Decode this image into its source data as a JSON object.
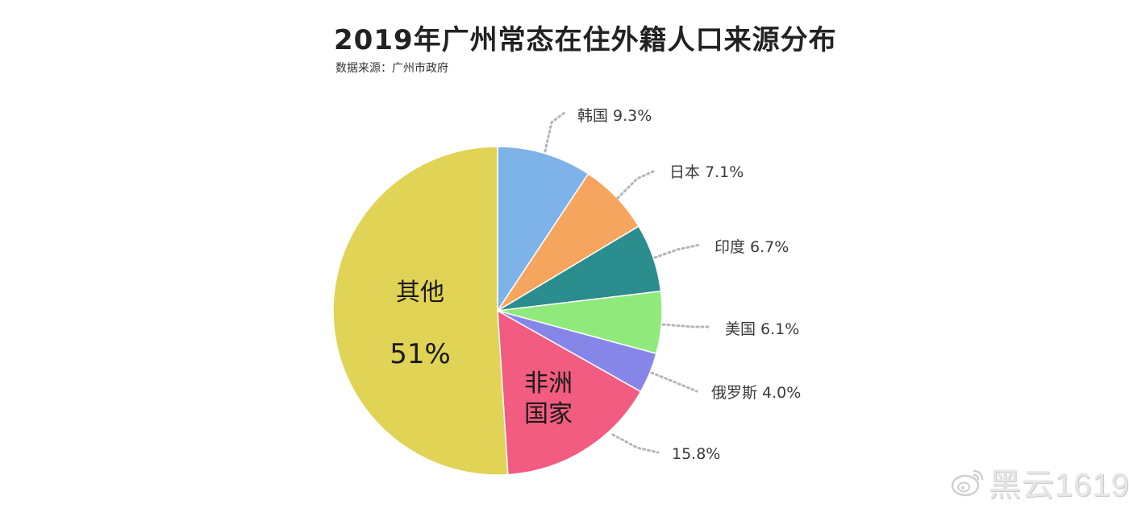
{
  "header": {
    "title": "2019年广州常态在住外籍人口来源分布",
    "subtitle": "数据来源：广州市政府"
  },
  "watermark": {
    "text": "黑云1619",
    "icon": "weibo-icon"
  },
  "chart_data": {
    "type": "pie",
    "title": "2019年广州常态在住外籍人口来源分布",
    "subtitle": "数据来源：广州市政府",
    "slices": [
      {
        "label": "韩国",
        "value": 9.3,
        "display": "韩国 9.3%",
        "color": "#7eb3ea",
        "label_side": "outside"
      },
      {
        "label": "日本",
        "value": 7.1,
        "display": "日本 7.1%",
        "color": "#f6a55e",
        "label_side": "outside"
      },
      {
        "label": "印度",
        "value": 6.7,
        "display": "印度 6.7%",
        "color": "#2b8d8d",
        "label_side": "outside"
      },
      {
        "label": "美国",
        "value": 6.1,
        "display": "美国 6.1%",
        "color": "#90ea7b",
        "label_side": "outside"
      },
      {
        "label": "俄罗斯",
        "value": 4.0,
        "display": "俄罗斯 4.0%",
        "color": "#8686e8",
        "label_side": "outside"
      },
      {
        "label": "非洲国家",
        "label_lines": [
          "非洲",
          "国家"
        ],
        "value": 15.8,
        "display": "15.8%",
        "color": "#f15c80",
        "label_side": "both"
      },
      {
        "label": "其他",
        "value": 51,
        "display": "51%",
        "color": "#e1d355",
        "label_side": "inside"
      }
    ],
    "start_angle_deg": 0,
    "direction": "clockwise",
    "connector_style": "dotted",
    "connector_color": "#b5b5b5",
    "slice_border_color": "#ffffff",
    "legend": "none"
  }
}
